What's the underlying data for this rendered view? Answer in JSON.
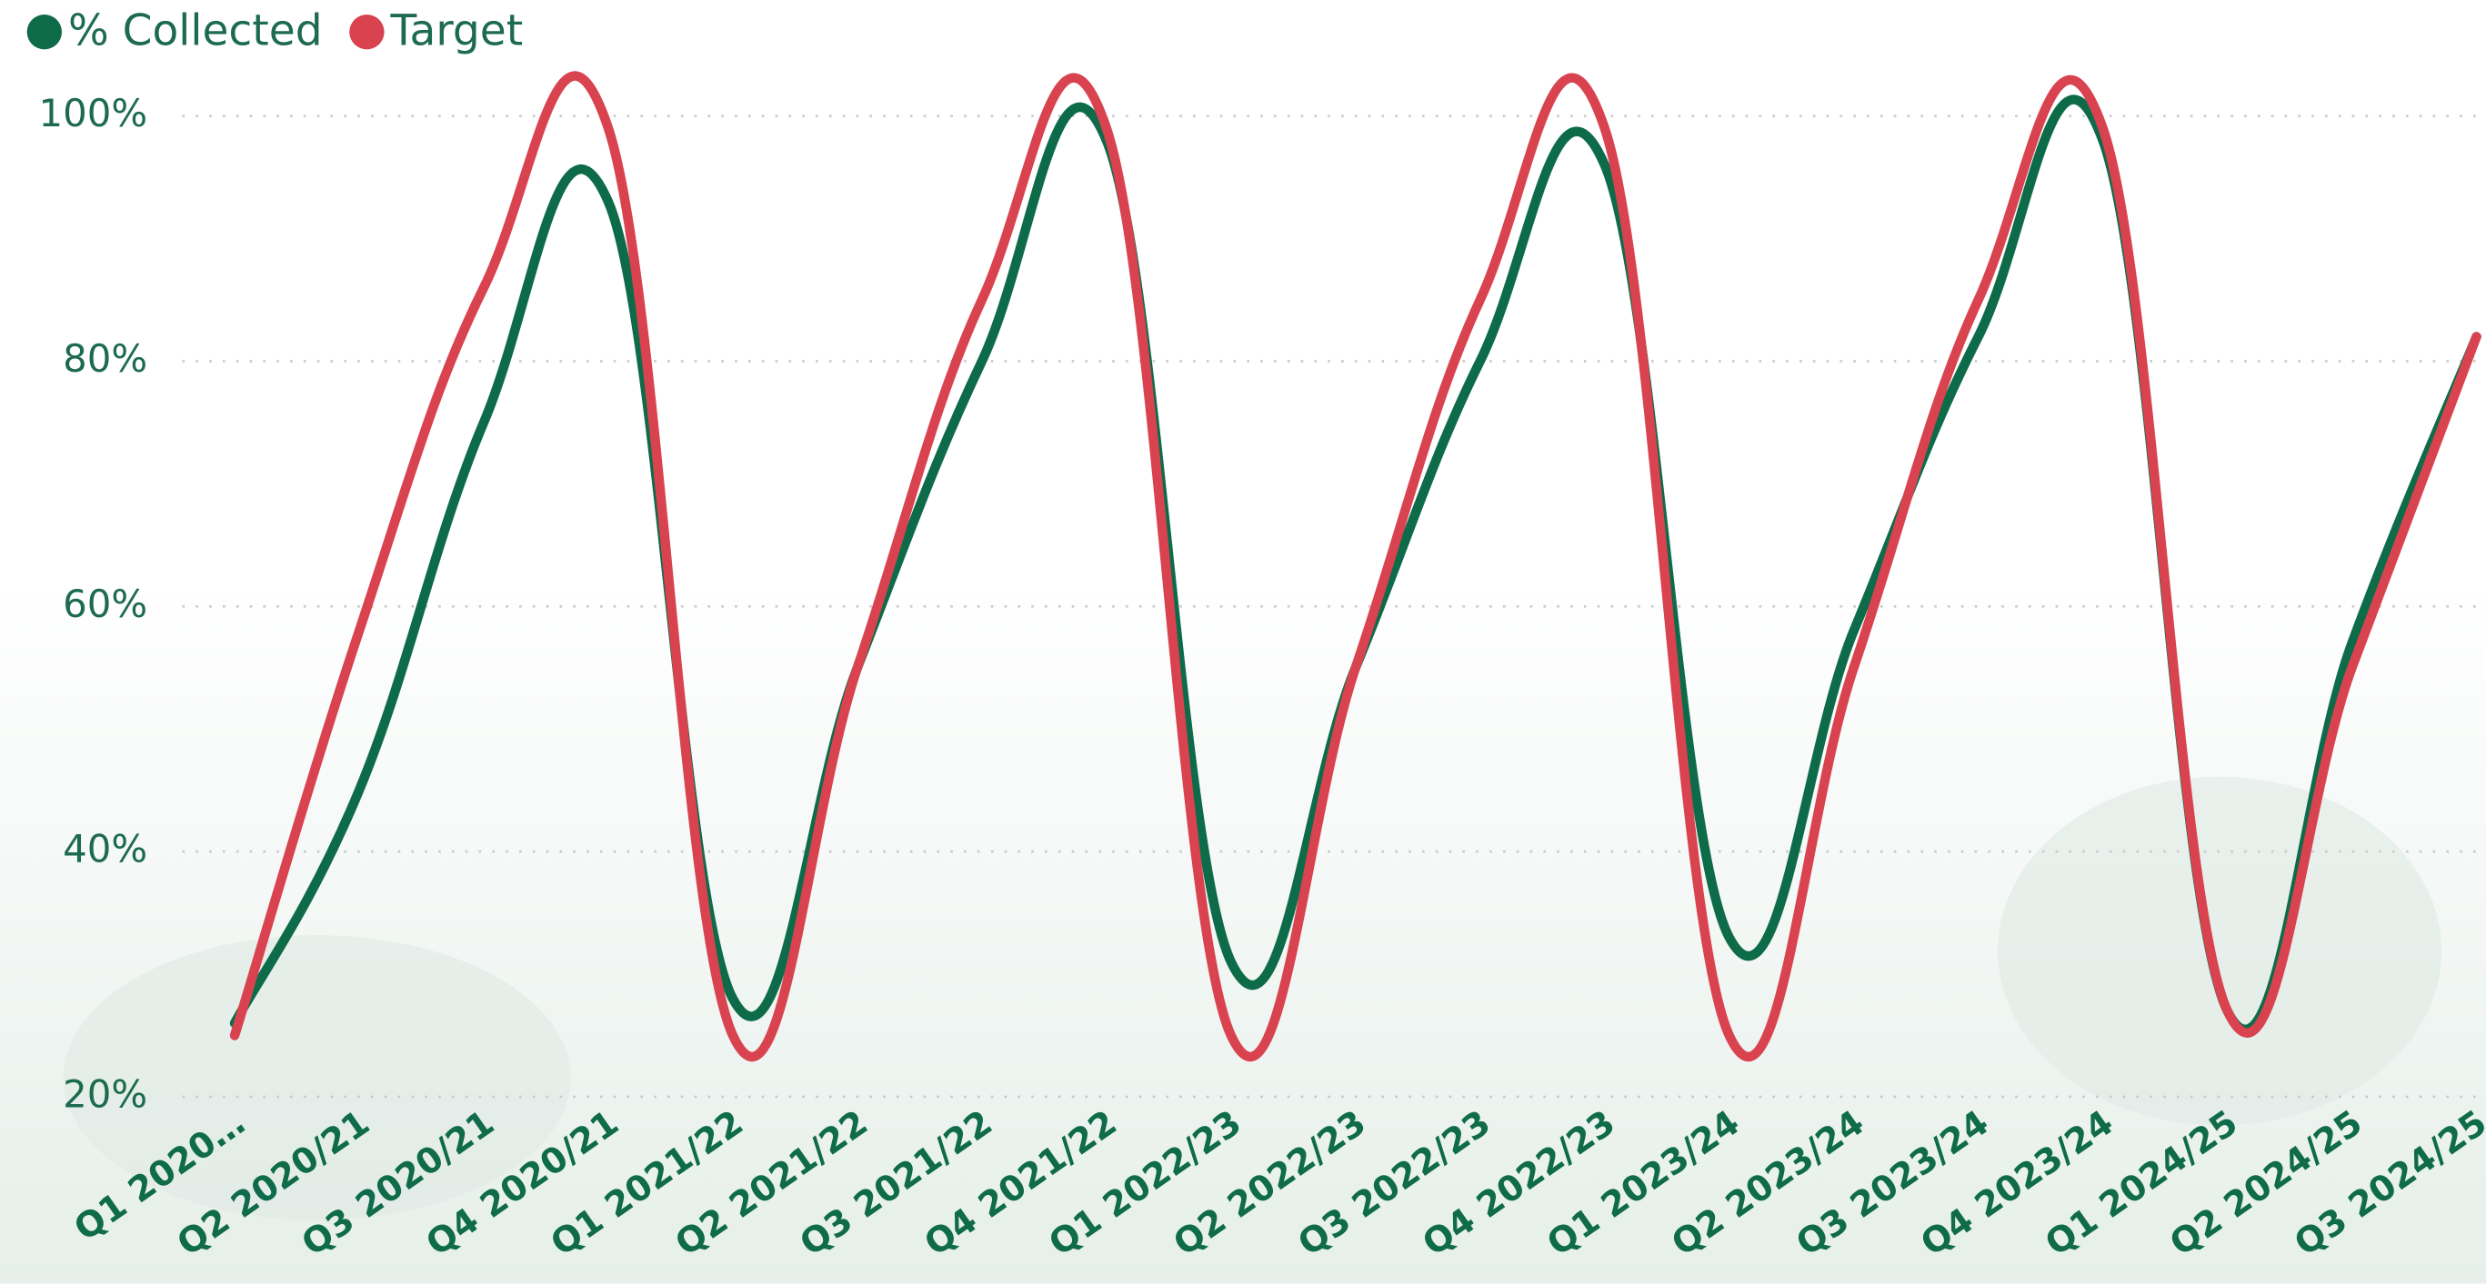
{
  "chart_data": {
    "type": "line",
    "categories": [
      "Q1 2020…",
      "Q2 2020/21",
      "Q3 2020/21",
      "Q4 2020/21",
      "Q1 2021/22",
      "Q2 2021/22",
      "Q3 2021/22",
      "Q4 2021/22",
      "Q1 2022/23",
      "Q2 2022/23",
      "Q3 2022/23",
      "Q4 2022/23",
      "Q1 2023/24",
      "Q2 2023/24",
      "Q3 2023/24",
      "Q4 2023/24",
      "Q1 2024/25",
      "Q2 2024/25",
      "Q3 2024/25"
    ],
    "series": [
      {
        "name": "% Collected",
        "color": "#0e6b4a",
        "values": [
          26,
          45,
          75,
          93,
          28,
          55,
          80,
          98,
          31,
          55,
          80,
          96,
          33,
          58,
          82,
          98,
          27,
          57,
          82
        ]
      },
      {
        "name": "Target",
        "color": "#d9434f",
        "values": [
          25,
          58,
          86,
          99,
          25,
          55,
          85,
          99,
          25,
          55,
          85,
          99,
          25,
          55,
          85,
          99,
          27,
          55,
          82
        ]
      }
    ],
    "ylim": [
      20,
      100
    ],
    "yticks": [
      {
        "value": 20,
        "label": "20%"
      },
      {
        "value": 40,
        "label": "40%"
      },
      {
        "value": 60,
        "label": "60%"
      },
      {
        "value": 80,
        "label": "80%"
      },
      {
        "value": 100,
        "label": "100%"
      }
    ],
    "grid": true
  }
}
